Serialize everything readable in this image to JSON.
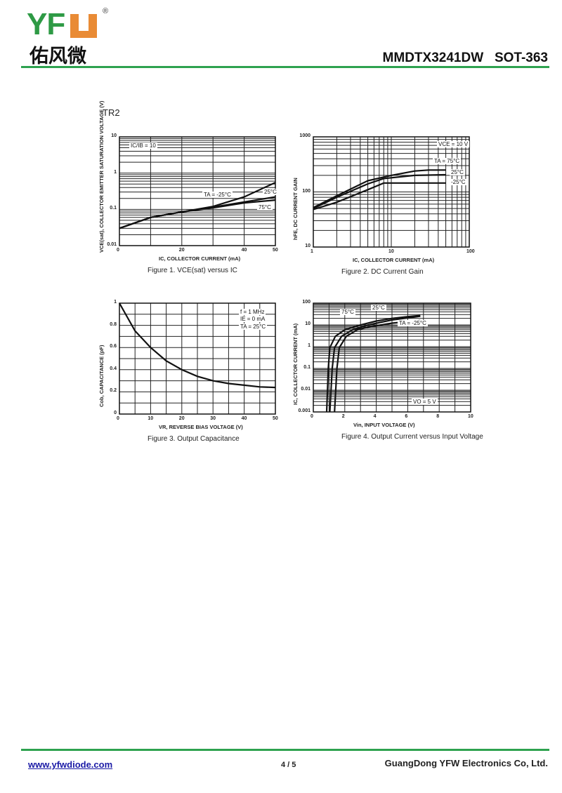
{
  "header": {
    "logo_letters": "YFW",
    "logo_cn": "佑风微",
    "registered": "®",
    "part": "MMDTX3241DW   SOT-363"
  },
  "section": "TR2",
  "footer": {
    "url": "www.yfwdiode.com",
    "page": "4 / 5",
    "company": "GuangDong YFW Electronics Co, Ltd."
  },
  "colors": {
    "brand_green": "#2ea24f",
    "brand_orange": "#e98b35",
    "curve": "#111111"
  },
  "chart_data": [
    {
      "type": "line",
      "title": "",
      "caption": "Figure 1. VCE(sat) versus IC",
      "xlabel": "IC, COLLECTOR CURRENT (mA)",
      "ylabel": "VCE(sat), COLLECTOR EMITTER SATURATION VOLTAGE (V)",
      "xscale": "linear",
      "yscale": "log",
      "xlim": [
        0,
        50
      ],
      "ylim": [
        0.01,
        10
      ],
      "grid": true,
      "xticks": [
        "0",
        "20",
        "40",
        "50"
      ],
      "xtick_values": [
        0,
        20,
        40,
        50
      ],
      "yticks": [
        "10",
        "1",
        "0.1",
        "0.01"
      ],
      "ytick_values": [
        10,
        1,
        0.1,
        0.01
      ],
      "annotations": [
        "IC/IB = 10",
        "TA = -25°C",
        "25°C",
        "75°C"
      ],
      "series": [
        {
          "name": "TA = -25°C",
          "x": [
            0,
            10,
            20,
            30,
            40,
            50
          ],
          "y": [
            0.03,
            0.06,
            0.085,
            0.12,
            0.22,
            0.55
          ]
        },
        {
          "name": "25°C",
          "x": [
            0,
            10,
            20,
            30,
            40,
            50
          ],
          "y": [
            0.03,
            0.06,
            0.085,
            0.115,
            0.16,
            0.22
          ]
        },
        {
          "name": "75°C",
          "x": [
            0,
            10,
            20,
            30,
            40,
            50
          ],
          "y": [
            0.03,
            0.06,
            0.085,
            0.11,
            0.15,
            0.18
          ]
        }
      ]
    },
    {
      "type": "line",
      "title": "",
      "caption": "Figure 2. DC Current Gain",
      "xlabel": "IC, COLLECTOR CURRENT (mA)",
      "ylabel": "hFE, DC CURRENT GAIN",
      "xscale": "log",
      "yscale": "log",
      "xlim": [
        1,
        100
      ],
      "ylim": [
        10,
        1000
      ],
      "grid": true,
      "xticks": [
        "1",
        "10",
        "100"
      ],
      "xtick_values": [
        1,
        10,
        100
      ],
      "yticks": [
        "1000",
        "100",
        "10"
      ],
      "ytick_values": [
        1000,
        100,
        10
      ],
      "annotations": [
        "VCE = 10 V",
        "TA = 75°C",
        "25°C",
        "-25°C"
      ],
      "series": [
        {
          "name": "TA = 75°C",
          "x": [
            1,
            2,
            5,
            10,
            20,
            30,
            50
          ],
          "y": [
            52,
            85,
            160,
            200,
            240,
            250,
            250
          ]
        },
        {
          "name": "25°C",
          "x": [
            1,
            2,
            5,
            8,
            20,
            50
          ],
          "y": [
            50,
            80,
            140,
            175,
            200,
            205
          ]
        },
        {
          "name": "-25°C",
          "x": [
            1,
            2,
            5,
            8,
            20,
            50
          ],
          "y": [
            48,
            65,
            110,
            145,
            145,
            145
          ]
        }
      ]
    },
    {
      "type": "line",
      "title": "",
      "caption": "Figure 3. Output Capacitance",
      "xlabel": "VR, REVERSE BIAS VOLTAGE (V)",
      "ylabel": "Cob, CAPACITANCE (pF)",
      "xscale": "linear",
      "yscale": "linear",
      "xlim": [
        0,
        50
      ],
      "ylim": [
        0,
        1
      ],
      "grid": true,
      "xticks": [
        "0",
        "10",
        "20",
        "30",
        "40",
        "50"
      ],
      "xtick_values": [
        0,
        10,
        20,
        30,
        40,
        50
      ],
      "yticks": [
        "1",
        "0.8",
        "0.6",
        "0.4",
        "0.2",
        "0"
      ],
      "ytick_values": [
        1,
        0.8,
        0.6,
        0.4,
        0.2,
        0
      ],
      "annotations": [
        "f = 1 MHz",
        "IE = 0 mA",
        "TA = 25°C"
      ],
      "series": [
        {
          "x": [
            0,
            5,
            10,
            15,
            20,
            25,
            30,
            35,
            40,
            45,
            50
          ],
          "y": [
            1,
            0.75,
            0.6,
            0.48,
            0.4,
            0.34,
            0.3,
            0.275,
            0.26,
            0.245,
            0.24
          ]
        }
      ]
    },
    {
      "type": "line",
      "title": "",
      "caption": "Figure 4. Output Current versus Input Voltage",
      "xlabel": "Vin, INPUT VOLTAGE (V)",
      "ylabel": "IC, COLLECTOR CURRENT (mA)",
      "xscale": "linear",
      "yscale": "log",
      "xlim": [
        0,
        10
      ],
      "ylim": [
        0.001,
        100
      ],
      "grid": true,
      "xticks": [
        "0",
        "2",
        "4",
        "6",
        "8",
        "10"
      ],
      "xtick_values": [
        0,
        2,
        4,
        6,
        8,
        10
      ],
      "yticks": [
        "100",
        "10",
        "1",
        "0.1",
        "0.01",
        "0.001"
      ],
      "ytick_values": [
        100,
        10,
        1,
        0.1,
        0.01,
        0.001
      ],
      "annotations": [
        "25°C",
        "75°C",
        "TA = -25°C",
        "VO = 5 V"
      ],
      "series": [
        {
          "name": "75°C",
          "x": [
            0.85,
            0.95,
            1.05,
            1.4,
            2,
            3,
            4,
            5,
            6,
            6.8
          ],
          "y": [
            0.001,
            0.1,
            0.9,
            3,
            6,
            10,
            15,
            20,
            24,
            27
          ]
        },
        {
          "name": "25°C",
          "x": [
            1.05,
            1.2,
            1.35,
            1.8,
            2.5,
            3.5,
            5,
            6.8
          ],
          "y": [
            0.001,
            0.1,
            0.9,
            3,
            6,
            10,
            17,
            25
          ]
        },
        {
          "name": "TA = -25°C",
          "x": [
            1.35,
            1.5,
            1.65,
            2.1,
            2.8,
            3.5,
            5,
            6.8
          ],
          "y": [
            0.001,
            0.1,
            0.9,
            3,
            6,
            8,
            12,
            16
          ]
        }
      ]
    }
  ]
}
